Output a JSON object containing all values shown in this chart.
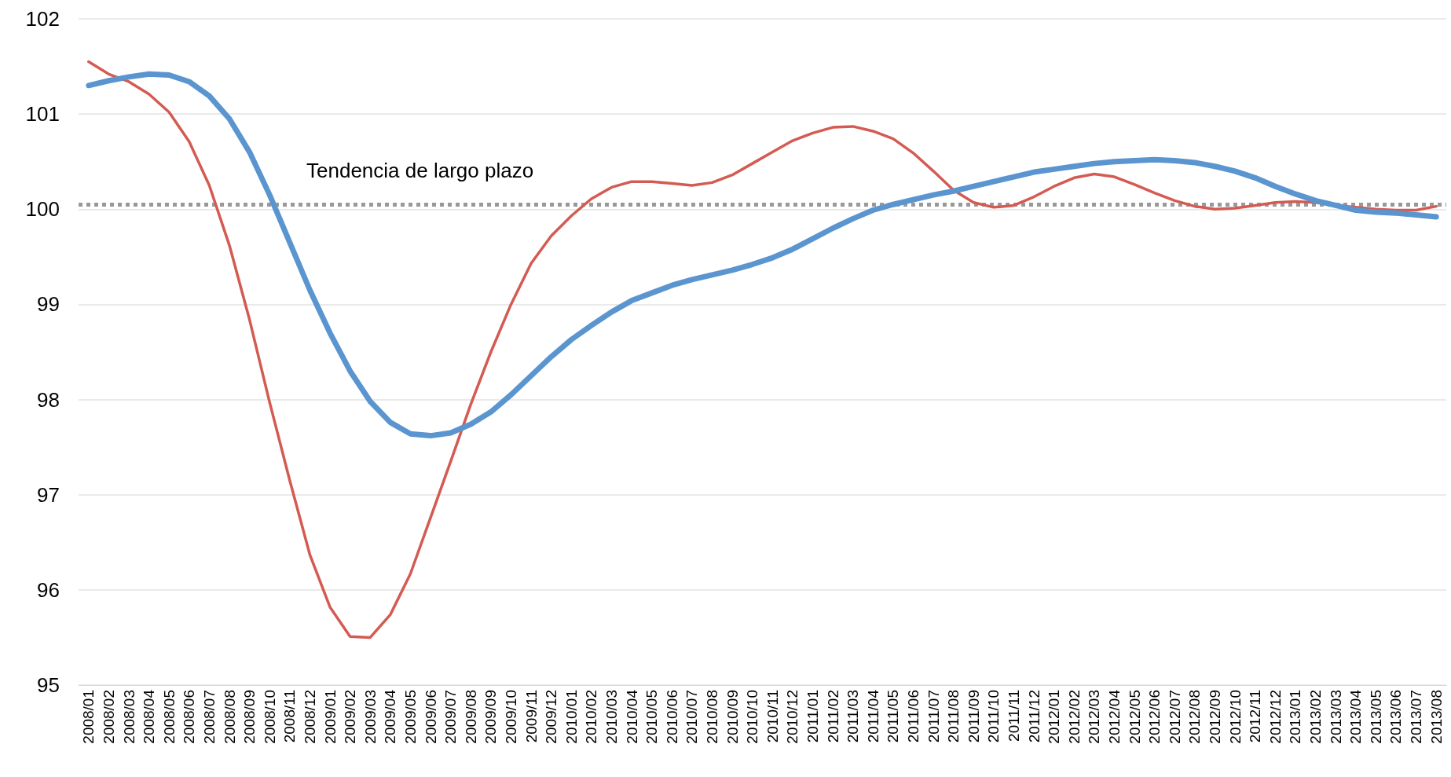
{
  "chart_data": {
    "type": "line",
    "categories": [
      "2008/01",
      "2008/02",
      "2008/03",
      "2008/04",
      "2008/05",
      "2008/06",
      "2008/07",
      "2008/08",
      "2008/09",
      "2008/10",
      "2008/11",
      "2008/12",
      "2009/01",
      "2009/02",
      "2009/03",
      "2009/04",
      "2009/05",
      "2009/06",
      "2009/07",
      "2009/08",
      "2009/09",
      "2009/10",
      "2009/11",
      "2009/12",
      "2010/01",
      "2010/02",
      "2010/03",
      "2010/04",
      "2010/05",
      "2010/06",
      "2010/07",
      "2010/08",
      "2010/09",
      "2010/10",
      "2010/11",
      "2010/12",
      "2011/01",
      "2011/02",
      "2011/03",
      "2011/04",
      "2011/05",
      "2011/06",
      "2011/07",
      "2011/08",
      "2011/09",
      "2011/10",
      "2011/11",
      "2011/12",
      "2012/01",
      "2012/02",
      "2012/03",
      "2012/04",
      "2012/05",
      "2012/06",
      "2012/07",
      "2012/08",
      "2012/09",
      "2012/10",
      "2012/11",
      "2012/12",
      "2013/01",
      "2013/02",
      "2013/03",
      "2013/04",
      "2013/05",
      "2013/06",
      "2013/07",
      "2013/08"
    ],
    "series": [
      {
        "color": "#5b95cf",
        "values": [
          101.3,
          101.35,
          101.39,
          101.42,
          101.41,
          101.34,
          101.19,
          100.95,
          100.6,
          100.15,
          99.65,
          99.15,
          98.7,
          98.3,
          97.98,
          97.76,
          97.64,
          97.62,
          97.65,
          97.74,
          97.87,
          98.05,
          98.25,
          98.45,
          98.63,
          98.78,
          98.92,
          99.04,
          99.12,
          99.2,
          99.26,
          99.31,
          99.36,
          99.42,
          99.49,
          99.58,
          99.69,
          99.8,
          99.9,
          99.99,
          100.05,
          100.1,
          100.15,
          100.19,
          100.24,
          100.29,
          100.34,
          100.39,
          100.42,
          100.45,
          100.48,
          100.5,
          100.51,
          100.52,
          100.51,
          100.49,
          100.45,
          100.4,
          100.33,
          100.24,
          100.16,
          100.09,
          100.04,
          99.99,
          99.97,
          99.96,
          99.94,
          99.92
        ]
      },
      {
        "color": "#d35b52",
        "values": [
          101.55,
          101.42,
          101.34,
          101.21,
          101.02,
          100.71,
          100.25,
          99.62,
          98.84,
          97.97,
          97.15,
          96.37,
          95.82,
          95.51,
          95.5,
          95.74,
          96.17,
          96.76,
          97.35,
          97.95,
          98.5,
          99.0,
          99.43,
          99.72,
          99.93,
          100.11,
          100.23,
          100.29,
          100.29,
          100.27,
          100.25,
          100.28,
          100.36,
          100.48,
          100.6,
          100.72,
          100.8,
          100.86,
          100.87,
          100.82,
          100.74,
          100.59,
          100.4,
          100.2,
          100.07,
          100.02,
          100.04,
          100.13,
          100.24,
          100.33,
          100.37,
          100.34,
          100.26,
          100.17,
          100.09,
          100.03,
          100.0,
          100.01,
          100.04,
          100.07,
          100.08,
          100.07,
          100.04,
          100.02,
          100.0,
          99.99,
          99.99,
          100.03
        ]
      }
    ],
    "ylim": [
      95,
      102
    ],
    "yticks": [
      95,
      96,
      97,
      98,
      99,
      100,
      101,
      102
    ],
    "grid": "y",
    "marker": "none",
    "line_style": "solid",
    "ref_lines": [
      {
        "axis": "y",
        "value": 100.05,
        "label": "Tendencia de largo plazo",
        "color": "#999999",
        "line_style": "dotted"
      }
    ]
  }
}
